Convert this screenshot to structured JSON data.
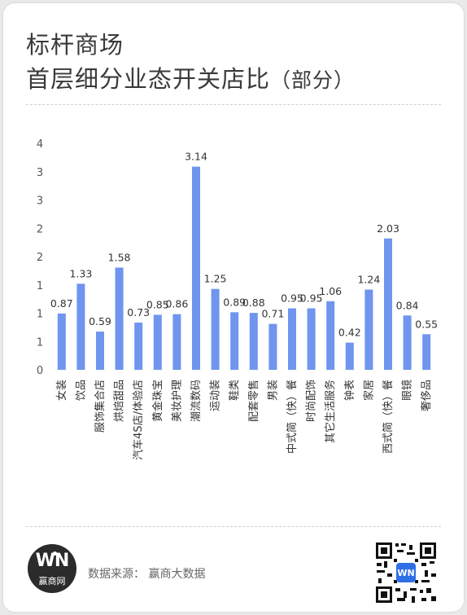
{
  "header": {
    "title_line1": "标杆商场",
    "title_line2": "首层细分业态开关店比",
    "title_suffix": "（部分）"
  },
  "chart_data": {
    "type": "bar",
    "categories": [
      "女装",
      "饮品",
      "服饰集合店",
      "烘焙甜品",
      "汽车4S店/体验店",
      "黄金珠宝",
      "美妆护理",
      "潮流数码",
      "运动装",
      "鞋类",
      "配套零售",
      "男装",
      "中式简（快）餐",
      "时尚配饰",
      "其它生活服务",
      "钟表",
      "家居",
      "西式简（快）餐",
      "眼镜",
      "奢侈品"
    ],
    "values": [
      0.87,
      1.33,
      0.59,
      1.58,
      0.73,
      0.85,
      0.86,
      3.14,
      1.25,
      0.89,
      0.88,
      0.71,
      0.95,
      0.95,
      1.06,
      0.42,
      1.24,
      2.03,
      0.84,
      0.55
    ],
    "y_tick_labels": [
      "0",
      "1",
      "1",
      "1",
      "2",
      "2",
      "3",
      "3",
      "4"
    ],
    "ylim": [
      0,
      3.5
    ],
    "bar_color": "#6f95ee",
    "grid": false,
    "legend": "none"
  },
  "footer": {
    "source": "数据来源：  赢商大数据",
    "logo_mark": "WN",
    "logo_name": "赢商网"
  }
}
